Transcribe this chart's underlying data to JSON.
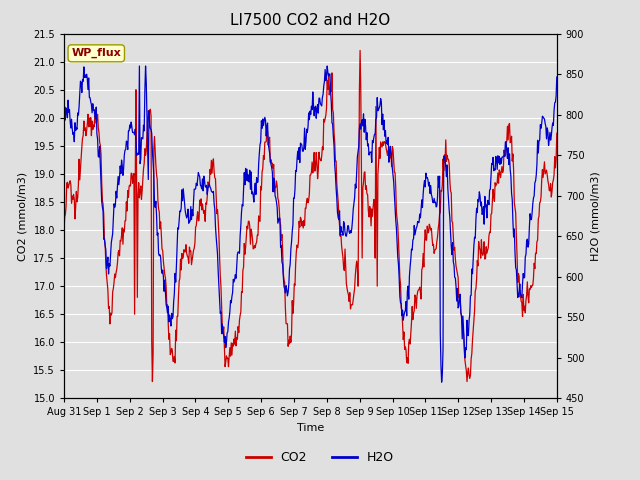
{
  "title": "LI7500 CO2 and H2O",
  "xlabel": "Time",
  "ylabel_left": "CO2 (mmol/m3)",
  "ylabel_right": "H2O (mmol/m3)",
  "annotation": "WP_flux",
  "co2_ylim": [
    15.0,
    21.5
  ],
  "h2o_ylim": [
    450,
    900
  ],
  "co2_yticks": [
    15.0,
    15.5,
    16.0,
    16.5,
    17.0,
    17.5,
    18.0,
    18.5,
    19.0,
    19.5,
    20.0,
    20.5,
    21.0,
    21.5
  ],
  "h2o_yticks": [
    450,
    500,
    550,
    600,
    650,
    700,
    750,
    800,
    850,
    900
  ],
  "background_color": "#e0e0e0",
  "plot_bg_color": "#e0e0e0",
  "co2_color": "#cc0000",
  "h2o_color": "#0000cc",
  "annotation_bg": "#ffffcc",
  "annotation_border": "#999900",
  "annotation_text_color": "#880000",
  "x_tick_labels": [
    "Aug 31",
    "Sep 1",
    "Sep 2",
    "Sep 3",
    "Sep 4",
    "Sep 5",
    "Sep 6",
    "Sep 7",
    "Sep 8",
    "Sep 9",
    "Sep 10",
    "Sep 11",
    "Sep 12",
    "Sep 13",
    "Sep 14",
    "Sep 15"
  ],
  "grid_color": "#ffffff",
  "title_fontsize": 11,
  "axis_fontsize": 8,
  "tick_fontsize": 7,
  "legend_fontsize": 9
}
